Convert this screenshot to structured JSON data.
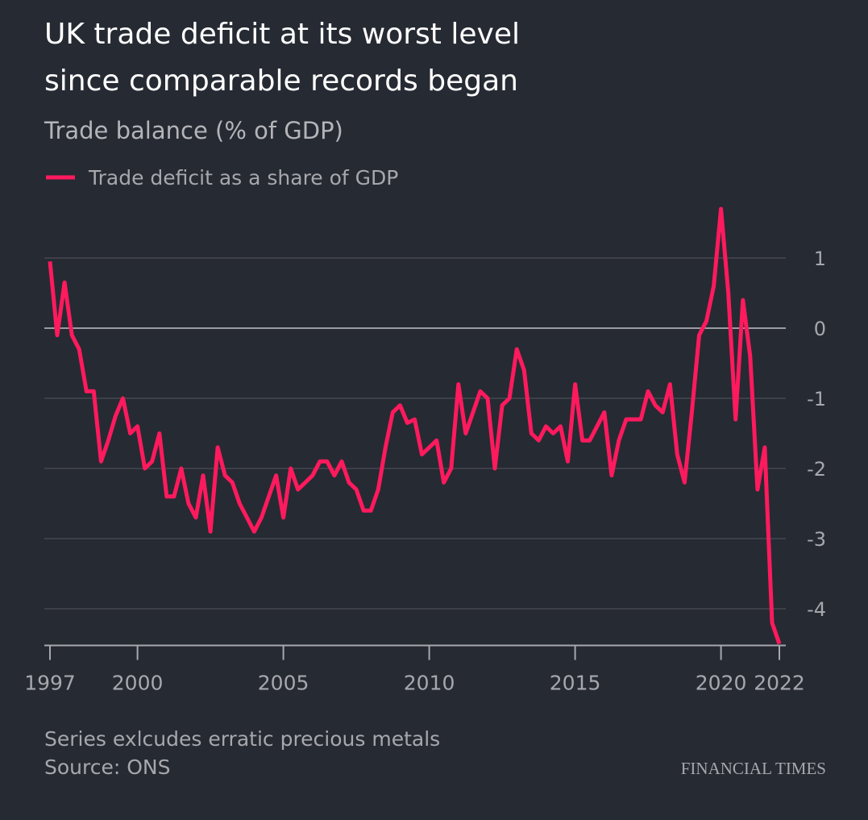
{
  "chart_data": {
    "type": "line",
    "title": [
      "UK trade deficit at its worst level",
      "since comparable records began"
    ],
    "subtitle": "Trade balance (% of GDP)",
    "x": [
      1997,
      1997.25,
      1997.5,
      1997.75,
      1998,
      1998.25,
      1998.5,
      1998.75,
      1999,
      1999.25,
      1999.5,
      1999.75,
      2000,
      2000.25,
      2000.5,
      2000.75,
      2001,
      2001.25,
      2001.5,
      2001.75,
      2002,
      2002.25,
      2002.5,
      2002.75,
      2003,
      2003.25,
      2003.5,
      2003.75,
      2004,
      2004.25,
      2004.5,
      2004.75,
      2005,
      2005.25,
      2005.5,
      2005.75,
      2006,
      2006.25,
      2006.5,
      2006.75,
      2007,
      2007.25,
      2007.5,
      2007.75,
      2008,
      2008.25,
      2008.5,
      2008.75,
      2009,
      2009.25,
      2009.5,
      2009.75,
      2010,
      2010.25,
      2010.5,
      2010.75,
      2011,
      2011.25,
      2011.5,
      2011.75,
      2012,
      2012.25,
      2012.5,
      2012.75,
      2013,
      2013.25,
      2013.5,
      2013.75,
      2014,
      2014.25,
      2014.5,
      2014.75,
      2015,
      2015.25,
      2015.5,
      2015.75,
      2016,
      2016.25,
      2016.5,
      2016.75,
      2017,
      2017.25,
      2017.5,
      2017.75,
      2018,
      2018.25,
      2018.5,
      2018.75,
      2019,
      2019.25,
      2019.5,
      2019.75,
      2020,
      2020.25,
      2020.5,
      2020.75,
      2021,
      2021.25,
      2021.5,
      2021.75,
      2022
    ],
    "series": [
      {
        "name": "Trade deficit as a share of GDP",
        "color": "#ff1a5e",
        "values": [
          0.95,
          -0.1,
          0.65,
          -0.1,
          -0.3,
          -0.9,
          -0.9,
          -1.9,
          -1.6,
          -1.25,
          -1.0,
          -1.5,
          -1.4,
          -2.0,
          -1.9,
          -1.5,
          -2.4,
          -2.4,
          -2.0,
          -2.5,
          -2.7,
          -2.1,
          -2.9,
          -1.7,
          -2.1,
          -2.2,
          -2.5,
          -2.7,
          -2.9,
          -2.7,
          -2.4,
          -2.1,
          -2.7,
          -2.0,
          -2.3,
          -2.2,
          -2.1,
          -1.9,
          -1.9,
          -2.1,
          -1.9,
          -2.2,
          -2.3,
          -2.6,
          -2.6,
          -2.3,
          -1.7,
          -1.2,
          -1.1,
          -1.35,
          -1.3,
          -1.8,
          -1.7,
          -1.6,
          -2.2,
          -2.0,
          -0.8,
          -1.5,
          -1.2,
          -0.9,
          -1.0,
          -2.0,
          -1.1,
          -1.0,
          -0.3,
          -0.6,
          -1.5,
          -1.6,
          -1.4,
          -1.5,
          -1.4,
          -1.9,
          -0.8,
          -1.6,
          -1.6,
          -1.4,
          -1.2,
          -2.1,
          -1.6,
          -1.3,
          -1.3,
          -1.3,
          -0.9,
          -1.1,
          -1.2,
          -0.8,
          -1.8,
          -2.2,
          -1.2,
          -0.1,
          0.1,
          0.6,
          1.7,
          0.5,
          -1.3,
          0.4,
          -0.4,
          -2.3,
          -1.7,
          -4.2,
          -4.5
        ]
      }
    ],
    "xlim": [
      1997,
      2022
    ],
    "xticks": [
      1997,
      2000,
      2005,
      2010,
      2015,
      2020,
      2022
    ],
    "ylim": [
      -4.5,
      1.8
    ],
    "yticks": [
      -4,
      -3,
      -2,
      -1,
      0,
      1
    ],
    "grid": true,
    "notes": [
      "Series exlcudes erratic precious metals",
      "Source: ONS"
    ],
    "brand": "FINANCIAL TIMES"
  }
}
